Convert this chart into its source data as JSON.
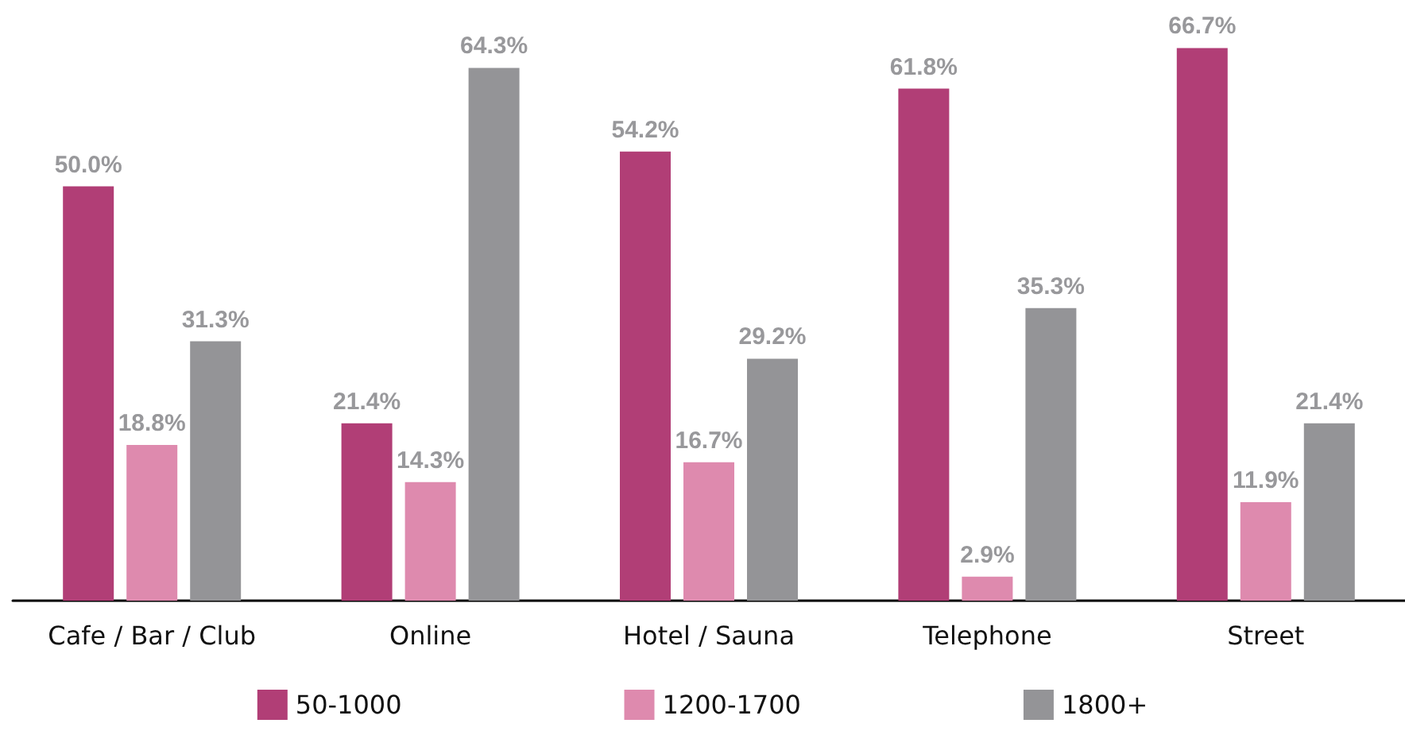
{
  "chart_data": {
    "type": "bar",
    "categories": [
      "Cafe / Bar / Club",
      "Online",
      "Hotel / Sauna",
      "Telephone",
      "Street"
    ],
    "series": [
      {
        "name": "50-1000",
        "color": "#b13e76",
        "values": [
          50.0,
          21.4,
          54.2,
          61.8,
          66.7
        ],
        "value_labels": [
          "50.0%",
          "21.4%",
          "54.2%",
          "61.8%",
          "66.7%"
        ]
      },
      {
        "name": "1200-1700",
        "color": "#de8aae",
        "values": [
          18.8,
          14.3,
          16.7,
          2.9,
          11.9
        ],
        "value_labels": [
          "18.8%",
          "14.3%",
          "16.7%",
          "2.9%",
          "11.9%"
        ]
      },
      {
        "name": "1800+",
        "color": "#949497",
        "values": [
          31.3,
          64.3,
          29.2,
          35.3,
          21.4
        ],
        "value_labels": [
          "31.3%",
          "64.3%",
          "29.2%",
          "35.3%",
          "21.4%"
        ]
      }
    ],
    "grid": false,
    "legend": "bottom"
  }
}
